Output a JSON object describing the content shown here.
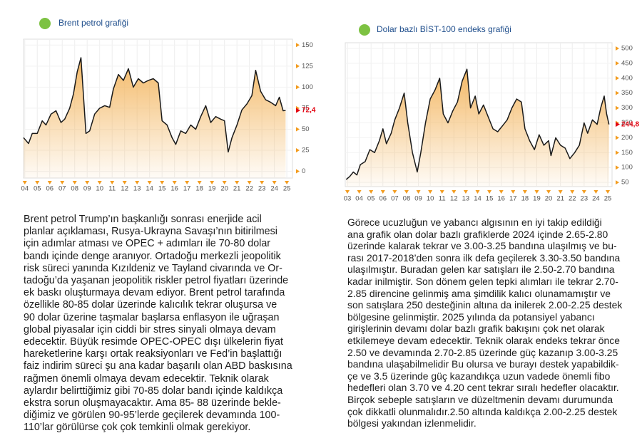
{
  "chart_data": [
    {
      "type": "line",
      "title": "Brent petrol grafiği",
      "x": [
        3.9,
        4.3,
        4.6,
        5.0,
        5.4,
        5.7,
        6.1,
        6.5,
        6.9,
        7.2,
        7.6,
        7.9,
        8.2,
        8.5,
        8.9,
        9.2,
        9.6,
        10.0,
        10.4,
        10.8,
        11.1,
        11.5,
        11.9,
        12.3,
        12.7,
        13.1,
        13.5,
        13.9,
        14.3,
        14.7,
        15.0,
        15.4,
        15.8,
        16.1,
        16.5,
        16.9,
        17.3,
        17.7,
        18.1,
        18.5,
        18.9,
        19.3,
        19.7,
        20.0,
        20.3,
        20.6,
        21.0,
        21.4,
        21.8,
        22.2,
        22.5,
        22.9,
        23.3,
        23.7,
        24.1,
        24.4,
        24.7,
        24.9
      ],
      "values": [
        40,
        33,
        45,
        45,
        60,
        55,
        68,
        72,
        58,
        62,
        75,
        92,
        118,
        135,
        45,
        48,
        68,
        75,
        78,
        76,
        98,
        115,
        108,
        122,
        100,
        110,
        105,
        108,
        110,
        105,
        60,
        55,
        40,
        32,
        48,
        45,
        55,
        50,
        65,
        78,
        58,
        65,
        62,
        60,
        23,
        40,
        55,
        73,
        80,
        90,
        120,
        95,
        85,
        82,
        78,
        88,
        72,
        72.4
      ],
      "color": "#1a1a1a",
      "fill_color": "#f3b55e",
      "accent_color": "#f39c1f",
      "xlim": [
        3.9,
        25.45
      ],
      "xticks": [
        {
          "value": 4,
          "label": "04"
        },
        {
          "value": 5,
          "label": "05"
        },
        {
          "value": 6,
          "label": "06"
        },
        {
          "value": 7,
          "label": "07"
        },
        {
          "value": 8,
          "label": "08"
        },
        {
          "value": 9,
          "label": "09"
        },
        10,
        11,
        12,
        13,
        14,
        15,
        16,
        17,
        18,
        19,
        20,
        21,
        22,
        23,
        24,
        25
      ],
      "ylim": [
        -8,
        157
      ],
      "yticks": [
        0,
        25,
        50,
        75,
        100,
        125,
        150
      ],
      "grid": true,
      "annotation": {
        "value": 72.4,
        "label": "72,4",
        "color": "#e30613"
      }
    },
    {
      "type": "line",
      "title": "Dolar bazlı BİST-100 endeks grafiği",
      "x": [
        2.9,
        3.2,
        3.5,
        3.8,
        4.1,
        4.5,
        4.9,
        5.3,
        5.7,
        6.0,
        6.3,
        6.7,
        7.0,
        7.4,
        7.8,
        8.1,
        8.5,
        8.9,
        9.2,
        9.6,
        10.0,
        10.4,
        10.8,
        11.1,
        11.5,
        11.9,
        12.3,
        12.7,
        13.1,
        13.4,
        13.8,
        14.1,
        14.5,
        14.9,
        15.3,
        15.7,
        16.1,
        16.5,
        16.9,
        17.3,
        17.7,
        18.0,
        18.4,
        18.8,
        19.2,
        19.6,
        20.0,
        20.2,
        20.6,
        21.0,
        21.4,
        21.8,
        22.2,
        22.6,
        23.0,
        23.3,
        23.7,
        24.1,
        24.4,
        24.7,
        24.9,
        25.1
      ],
      "values": [
        60,
        70,
        85,
        75,
        110,
        120,
        160,
        150,
        190,
        230,
        180,
        215,
        260,
        300,
        350,
        250,
        150,
        85,
        150,
        250,
        330,
        360,
        400,
        280,
        250,
        290,
        320,
        390,
        430,
        300,
        340,
        280,
        310,
        270,
        230,
        220,
        240,
        260,
        300,
        330,
        320,
        230,
        190,
        160,
        210,
        175,
        190,
        140,
        200,
        175,
        165,
        130,
        150,
        175,
        250,
        215,
        260,
        245,
        300,
        340,
        280,
        244.8
      ],
      "color": "#1a1a1a",
      "fill_color": "#f3b55e",
      "accent_color": "#f39c1f",
      "xlim": [
        2.82,
        25.36
      ],
      "xticks": [
        {
          "value": 3,
          "label": "03"
        },
        {
          "value": 4,
          "label": "04"
        },
        {
          "value": 5,
          "label": "05"
        },
        {
          "value": 6,
          "label": "06"
        },
        {
          "value": 7,
          "label": "07"
        },
        {
          "value": 8,
          "label": "08"
        },
        {
          "value": 9,
          "label": "09"
        },
        10,
        11,
        12,
        13,
        14,
        15,
        16,
        17,
        18,
        19,
        20,
        21,
        22,
        23,
        24,
        25
      ],
      "ylim": [
        36,
        519
      ],
      "yticks": [
        50,
        100,
        150,
        200,
        250,
        300,
        350,
        400,
        450,
        500
      ],
      "grid": true,
      "annotation": {
        "value": 244.8,
        "label": "244,8",
        "color": "#e30613"
      }
    }
  ],
  "articles": [
    {
      "lines": [
        "Brent petrol Trump’ın başkanlığı sonrası enerjide acil",
        "planlar açıklaması, Rusya-Ukrayna Savaşı’nın bitirilmesi",
        "için adımlar atması ve OPEC + adımları ile 70-80 dolar",
        "bandı içinde denge aranıyor. Ortadoğu merkezli jeopolitik",
        "risk süreci yanında Kızıldeniz ve Tayland civarında ve Or-",
        "tadoğu’da yaşanan jeopolitik riskler petrol fiyatları üzerinde",
        "ek baskı oluşturmaya devam ediyor. Brent petrol tarafında",
        "özellikle 80-85 dolar üzerinde kalıcılık tekrar oluşursa ve",
        "90 dolar üzerine taşmalar başlarsa enflasyon ile uğraşan",
        "global piyasalar için ciddi bir stres sinyali olmaya devam",
        "edecektir. Büyük resimde OPEC-OPEC dışı ülkelerin fiyat",
        "hareketlerine karşı ortak reaksiyonları ve Fed’in başlattığı",
        "faiz indirim süreci şu ana kadar başarılı olan ABD baskısına",
        "rağmen önemli olmaya devam edecektir. Teknik olarak",
        "aylardır belirttiğimiz gibi 70-85 dolar bandı içinde kaldıkça",
        "ekstra sorun oluşmayacaktır. Ama 85- 88 üzerinde bekle-",
        "diğimiz ve görülen 90-95’lerde geçilerek devamında 100-",
        "110’lar görülürse çok çok temkinli olmak gerekiyor."
      ]
    },
    {
      "lines": [
        "Görece ucuzluğun ve yabancı algısının en iyi takip edildiği",
        "ana grafik olan dolar bazlı grafiklerde 2024 içinde 2.65-2.80",
        "üzerinde kalarak tekrar ve 3.00-3.25 bandına ulaşılmış ve bu-",
        "rası 2017-2018’den sonra ilk defa geçilerek 3.30-3.50 bandına",
        "ulaşılmıştır. Buradan gelen kar satışları ile 2.50-2.70 bandına",
        "kadar inilmiştir. Son dönem gelen tepki alımları ile tekrar 2.70-",
        "2.85 direncine gelinmiş ama şimdilik kalıcı olunamamıştır ve",
        "son satışlara 250 desteğinin altına da inilerek 2.00-2.25 destek",
        "bölgesine gelinmiştir. 2025 yılında da potansiyel yabancı",
        "girişlerinin devamı dolar bazlı grafik bakışını çok net olarak",
        "etkilemeye devam edecektir. Teknik olarak endeks tekrar önce",
        "2.50 ve devamında 2.70-2.85 üzerinde güç kazanıp 3.00-3.25",
        "bandına ulaşabilmelidir Bu olursa ve burayı destek yapabildik-",
        "çe ve 3.5 üzerinde güç kazandıkça uzun vadede önemli fibo",
        "hedefleri olan 3.70 ve 4.20 cent tekrar sıralı hedefler olacaktır.",
        "Birçok sebeple satışların ve düzeltmenin devamı durumunda",
        "çok dikkatli olunmalıdır.2.50 altında kaldıkça 2.00-2.25 destek",
        "bölgesi yakından izlenmelidir."
      ]
    }
  ]
}
